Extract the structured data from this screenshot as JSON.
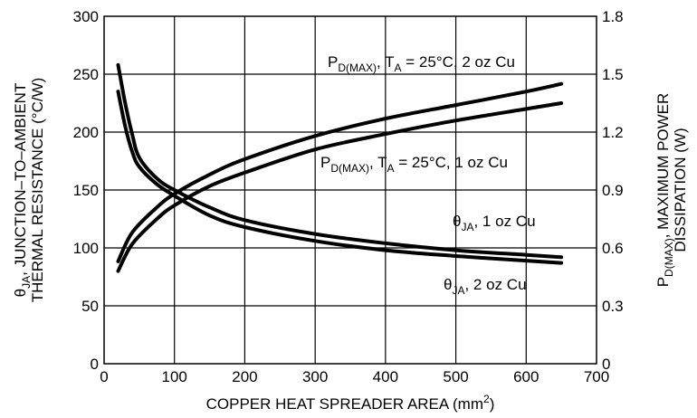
{
  "chart_data": {
    "type": "line",
    "xlabel": "COPPER HEAT SPREADER AREA (mm",
    "xlabel_sup": "2",
    "xlabel_tail": ")",
    "ylabel_left_line1_sym": "θ",
    "ylabel_left_line1_sub": "JA",
    "ylabel_left_line1_rest": ", JUNCTION–TO–AMBIENT",
    "ylabel_left_line2": "THERMAL RESISTANCE (°C/W)",
    "ylabel_right_line1_main": "P",
    "ylabel_right_line1_sub": "D(MAX)",
    "ylabel_right_line1_rest": ", MAXIMUM POWER",
    "ylabel_right_line2": "DISSIPATION (W)",
    "xlim": [
      0,
      700
    ],
    "ylim_left": [
      0,
      300
    ],
    "ylim_right": [
      0,
      1.8
    ],
    "x_ticks": [
      "0",
      "100",
      "200",
      "300",
      "400",
      "500",
      "600",
      "700"
    ],
    "y_left_ticks": [
      "0",
      "50",
      "100",
      "150",
      "200",
      "250",
      "300"
    ],
    "y_right_ticks": [
      "0",
      "0.3",
      "0.6",
      "0.9",
      "1.2",
      "1.5",
      "1.8"
    ],
    "grid": true,
    "series": [
      {
        "name": "θJA, 1 oz Cu",
        "axis": "left",
        "x": [
          20,
          30,
          40,
          50,
          75,
          100,
          150,
          200,
          300,
          400,
          500,
          600,
          650
        ],
        "y": [
          258,
          225,
          198,
          178,
          160,
          150,
          135,
          124,
          112,
          104,
          98,
          94,
          92
        ]
      },
      {
        "name": "θJA, 2 oz Cu",
        "axis": "left",
        "x": [
          20,
          30,
          40,
          50,
          75,
          100,
          150,
          200,
          300,
          400,
          500,
          600,
          650
        ],
        "y": [
          235,
          205,
          183,
          170,
          155,
          145,
          128,
          118,
          106,
          98,
          93,
          89,
          87
        ]
      },
      {
        "name": "PD(MAX), TA = 25°C, 2 oz Cu",
        "axis": "right",
        "x": [
          20,
          40,
          75,
          100,
          150,
          200,
          300,
          400,
          500,
          600,
          650
        ],
        "y": [
          0.53,
          0.68,
          0.81,
          0.88,
          0.98,
          1.06,
          1.18,
          1.27,
          1.34,
          1.41,
          1.45
        ]
      },
      {
        "name": "PD(MAX), TA = 25°C, 1 oz Cu",
        "axis": "right",
        "x": [
          20,
          40,
          75,
          100,
          150,
          200,
          300,
          400,
          500,
          600,
          650
        ],
        "y": [
          0.48,
          0.62,
          0.75,
          0.82,
          0.92,
          0.99,
          1.11,
          1.19,
          1.26,
          1.32,
          1.35
        ]
      }
    ],
    "annotations": {
      "pd2": {
        "main": "P",
        "sub1": "D(MAX)",
        "mid": ", T",
        "sub2": "A",
        "rest": " = 25°C, 2 oz Cu"
      },
      "pd1": {
        "main": "P",
        "sub1": "D(MAX)",
        "mid": ", T",
        "sub2": "A",
        "rest": " = 25°C, 1 oz Cu"
      },
      "th1": {
        "sym": "θ",
        "sub": "JA",
        "rest": ", 1 oz Cu"
      },
      "th2": {
        "sym": "θ",
        "sub": "JA",
        "rest": ", 2 oz Cu"
      }
    }
  }
}
